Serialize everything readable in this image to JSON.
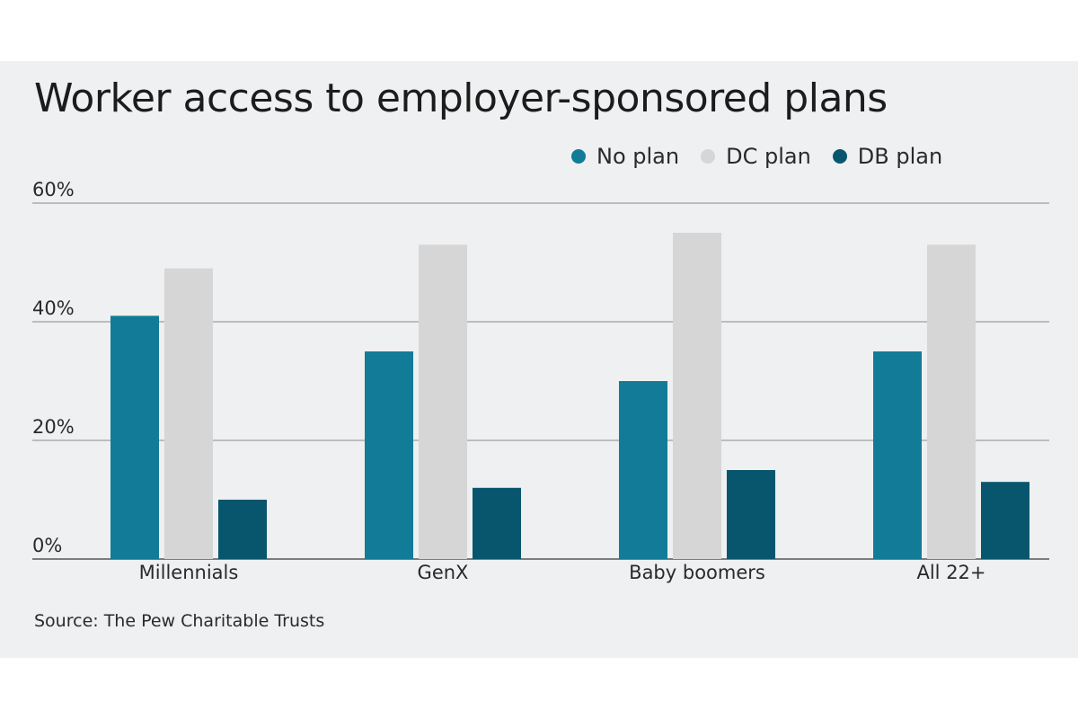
{
  "chart_data": {
    "type": "bar",
    "title": "Worker access to employer-sponsored plans",
    "categories": [
      "Millennials",
      "GenX",
      "Baby boomers",
      "All 22+"
    ],
    "series": [
      {
        "name": "No plan",
        "color": "#127c98",
        "values": [
          41,
          35,
          30,
          35
        ]
      },
      {
        "name": "DC plan",
        "color": "#d7d6d6",
        "values": [
          49,
          53,
          55,
          53
        ]
      },
      {
        "name": "DB plan",
        "color": "#08566d",
        "values": [
          10,
          12,
          15,
          13
        ]
      }
    ],
    "yticks": [
      "0%",
      "20%",
      "40%",
      "60%"
    ],
    "ylim": [
      0,
      60
    ],
    "grid": true,
    "legend_position": "top-right",
    "source": "Source: The Pew Charitable Trusts"
  }
}
